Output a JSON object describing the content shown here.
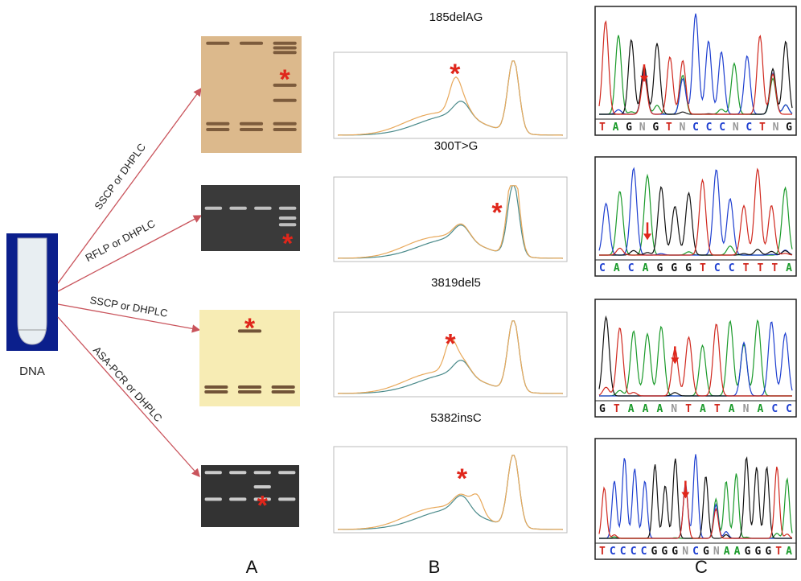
{
  "source": {
    "label": "DNA"
  },
  "methods": [
    "SSCP or DHPLC",
    "RFLP or DHPLC",
    "SSCP or DHPLC",
    "ASA-PCR or DHPLC"
  ],
  "mutations": [
    {
      "name": "185delAG",
      "sequence": "TAGNGTNCCCNCTNG"
    },
    {
      "name": "300T>G",
      "sequence": "CACAGGGTCCTTTA"
    },
    {
      "name": "3819del5",
      "sequence": "GTAAANTATANACC"
    },
    {
      "name": "5382insC",
      "sequence": "TCCCCGGGNCGNAAGGGTA"
    }
  ],
  "marker": "*",
  "panel_labels": [
    "A",
    "B",
    "C"
  ]
}
